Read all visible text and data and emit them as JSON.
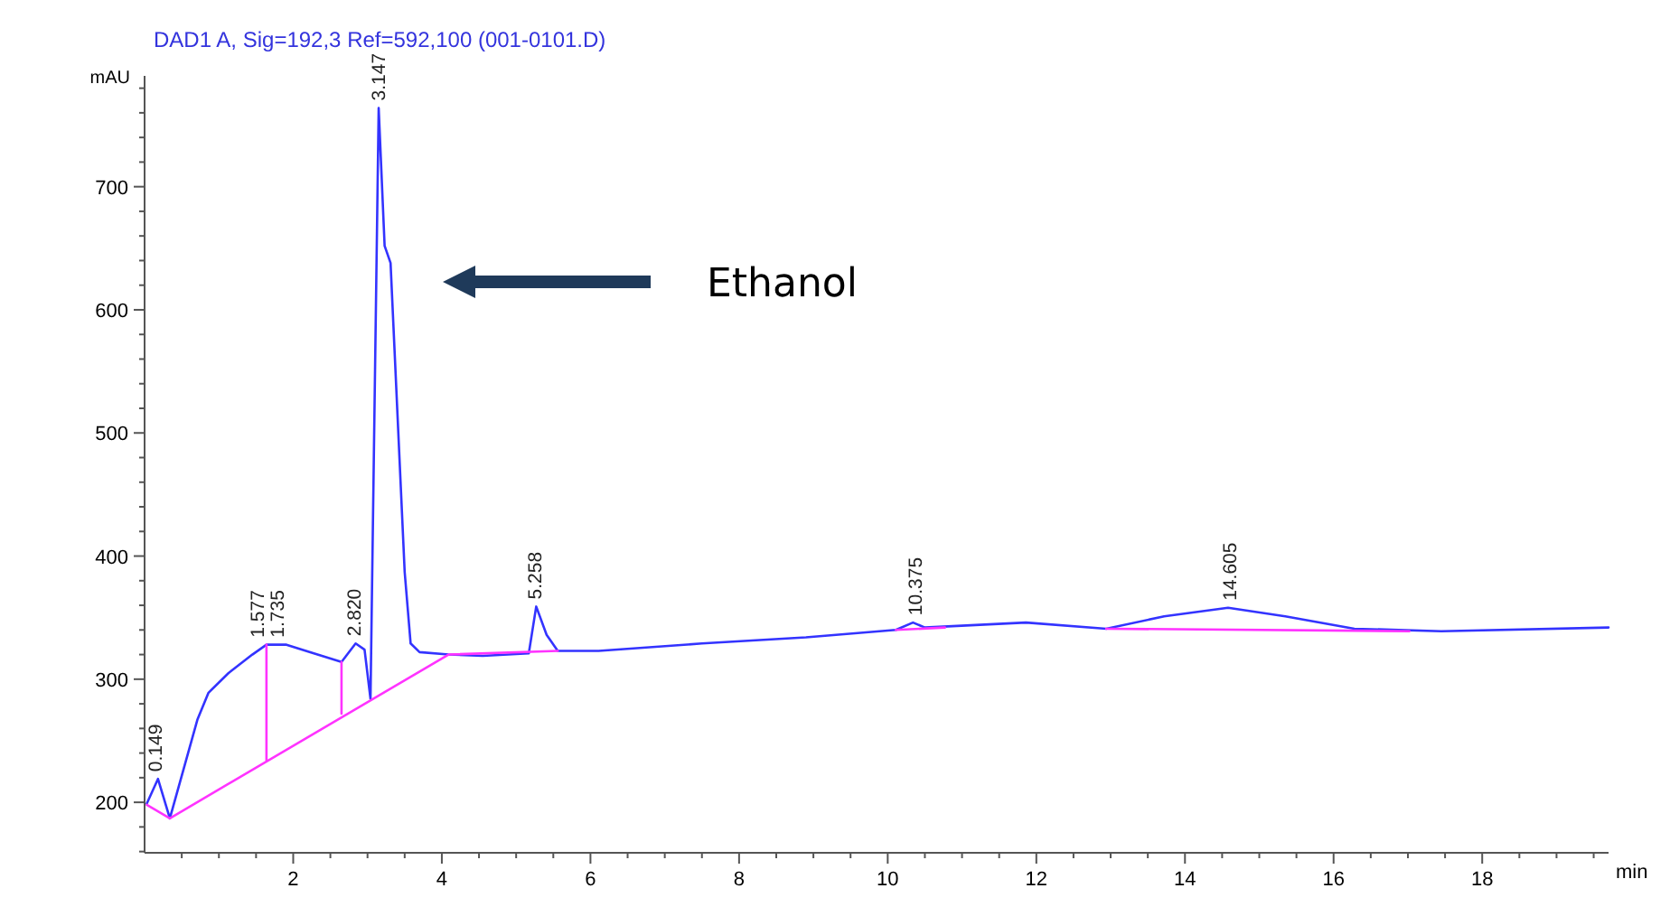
{
  "chart_data": {
    "type": "line",
    "title": "DAD1 A, Sig=192,3 Ref=592,100 (001-0101.D)",
    "ylabel": "mAU",
    "xlabel": "min",
    "xlim": [
      0,
      19.7
    ],
    "ylim": [
      159,
      790
    ],
    "xticks": [
      {
        "value": 0.5,
        "label": null
      },
      {
        "value": 1,
        "label": null
      },
      {
        "value": 1.5,
        "label": null
      },
      2,
      {
        "value": 2.5,
        "label": null
      },
      {
        "value": 3,
        "label": null
      },
      {
        "value": 3.5,
        "label": null
      },
      4,
      {
        "value": 4.5,
        "label": null
      },
      {
        "value": 5,
        "label": null
      },
      {
        "value": 5.5,
        "label": null
      },
      6,
      {
        "value": 6.5,
        "label": null
      },
      {
        "value": 7,
        "label": null
      },
      {
        "value": 7.5,
        "label": null
      },
      8,
      {
        "value": 8.5,
        "label": null
      },
      {
        "value": 9,
        "label": null
      },
      {
        "value": 9.5,
        "label": null
      },
      10,
      {
        "value": 10.5,
        "label": null
      },
      {
        "value": 11,
        "label": null
      },
      {
        "value": 11.5,
        "label": null
      },
      12,
      {
        "value": 12.5,
        "label": null
      },
      {
        "value": 13,
        "label": null
      },
      {
        "value": 13.5,
        "label": null
      },
      14,
      {
        "value": 14.5,
        "label": null
      },
      {
        "value": 15,
        "label": null
      },
      {
        "value": 15.5,
        "label": null
      },
      16,
      {
        "value": 16.5,
        "label": null
      },
      {
        "value": 17,
        "label": null
      },
      {
        "value": 17.5,
        "label": null
      },
      18,
      {
        "value": 18.5,
        "label": null
      },
      {
        "value": 19,
        "label": null
      },
      {
        "value": 19.5,
        "label": null
      }
    ],
    "yticks": [
      {
        "value": 160,
        "label": null
      },
      {
        "value": 180,
        "label": null
      },
      200,
      {
        "value": 220,
        "label": null
      },
      {
        "value": 240,
        "label": null
      },
      {
        "value": 260,
        "label": null
      },
      {
        "value": 280,
        "label": null
      },
      300,
      {
        "value": 320,
        "label": null
      },
      {
        "value": 340,
        "label": null
      },
      {
        "value": 360,
        "label": null
      },
      {
        "value": 380,
        "label": null
      },
      400,
      {
        "value": 420,
        "label": null
      },
      {
        "value": 440,
        "label": null
      },
      {
        "value": 460,
        "label": null
      },
      {
        "value": 480,
        "label": null
      },
      500,
      {
        "value": 520,
        "label": null
      },
      {
        "value": 540,
        "label": null
      },
      {
        "value": 560,
        "label": null
      },
      {
        "value": 580,
        "label": null
      },
      600,
      {
        "value": 620,
        "label": null
      },
      {
        "value": 640,
        "label": null
      },
      {
        "value": 660,
        "label": null
      },
      {
        "value": 680,
        "label": null
      },
      700,
      {
        "value": 720,
        "label": null
      },
      {
        "value": 740,
        "label": null
      },
      {
        "value": 760,
        "label": null
      },
      {
        "value": 780,
        "label": null
      }
    ],
    "grid": false,
    "marker": "none",
    "line_style": "solid",
    "series": [
      {
        "color": "#3333ff",
        "x": [
          0.03,
          0.18,
          0.34,
          0.71,
          0.86,
          1.13,
          1.45,
          1.64,
          1.91,
          2.22,
          2.65,
          2.84,
          2.96,
          3.04,
          3.15,
          3.23,
          3.31,
          3.5,
          3.58,
          3.7,
          4.09,
          4.55,
          5.17,
          5.27,
          5.41,
          5.56,
          6.11,
          7.5,
          8.9,
          10.11,
          10.34,
          10.5,
          11.86,
          12.94,
          13.72,
          14.58,
          15.35,
          16.28,
          17.45,
          19.7
        ],
        "values": [
          199,
          219,
          187,
          267,
          289,
          305,
          320,
          328,
          328,
          322,
          314,
          329,
          324,
          284,
          764,
          652,
          638,
          387,
          329,
          322,
          320,
          319,
          321,
          359,
          336,
          323,
          323,
          329,
          334,
          340,
          346,
          342,
          346,
          341,
          351,
          358,
          351,
          341,
          339,
          342
        ]
      },
      {
        "color": "#ff33ff",
        "x": [
          0.03,
          0.34,
          4.09,
          5.56,
          null,
          1.64,
          1.64,
          null,
          2.65,
          2.65,
          null,
          10.11,
          10.77,
          null,
          12.94,
          17.02
        ],
        "values": [
          198,
          187,
          320,
          323,
          null,
          328,
          234,
          null,
          314,
          272,
          null,
          340,
          342,
          null,
          341,
          339
        ]
      }
    ],
    "annotations": [
      {
        "text": "0.149",
        "x": 0.149,
        "y": 219
      },
      {
        "text": "1.577",
        "x": 1.577,
        "y": 328
      },
      {
        "text": "1.735",
        "x": 1.735,
        "y": 328
      },
      {
        "text": "2.820",
        "x": 2.82,
        "y": 329
      },
      {
        "text": "3.147",
        "x": 3.147,
        "y": 764
      },
      {
        "text": "5.258",
        "x": 5.258,
        "y": 359
      },
      {
        "text": "10.375",
        "x": 10.375,
        "y": 346
      },
      {
        "text": "14.605",
        "x": 14.605,
        "y": 358
      },
      "Ethanol"
    ]
  }
}
